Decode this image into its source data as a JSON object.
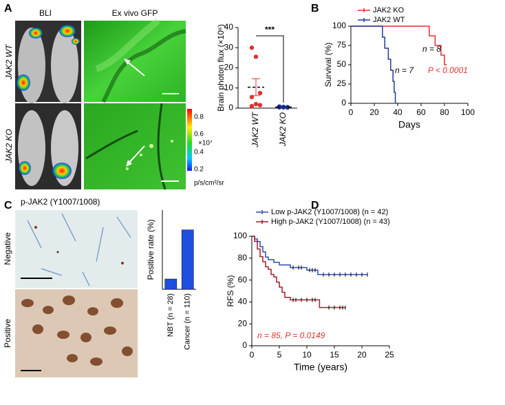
{
  "panel_labels": [
    "A",
    "B",
    "C",
    "D"
  ],
  "panel_a": {
    "columns": [
      "BLI",
      "Ex vivo GFP"
    ],
    "rows": [
      "JAK2 WT",
      "JAK2 KO"
    ],
    "colorbar": {
      "ticks": [
        "0.8",
        "0.6",
        "0.4",
        "0.2"
      ],
      "scale": "×10⁷",
      "unit": "p/s/cm²/sr"
    }
  },
  "panel_c": {
    "title": "p-JAK2 (Y1007/1008)",
    "rows": [
      "Negative",
      "Positive"
    ]
  },
  "chart_data": [
    {
      "type": "dot",
      "ylabel": "Brain photon flux (×10⁶)",
      "categories": [
        "JAK2 WT",
        "JAK2 KO"
      ],
      "values": [
        [
          30,
          25.5,
          7.5,
          5.5,
          2,
          1.5,
          1
        ],
        [
          0.8,
          0.6,
          0.5,
          0.4,
          0.5,
          0.3,
          0.6,
          0.4
        ]
      ],
      "colors": [
        "#e0312f",
        "#1c2f8f"
      ],
      "means": [
        10.4,
        0.5
      ],
      "errors": [
        4.2,
        0.1
      ],
      "annotation": "***",
      "ylim": [
        0,
        40
      ],
      "yticks": [
        0,
        10,
        20,
        30,
        40
      ]
    },
    {
      "type": "step",
      "xlabel": "Days",
      "ylabel": "Survival (%)",
      "xlim": [
        0,
        100
      ],
      "xticks": [
        0,
        20,
        40,
        60,
        80,
        100
      ],
      "ylim": [
        0,
        100
      ],
      "yticks": [
        0,
        25,
        50,
        75,
        100
      ],
      "series": [
        {
          "name": "JAK2 KO",
          "color": "#e0312f",
          "x": [
            0,
            67,
            72,
            77,
            80,
            82
          ],
          "values": [
            100,
            87.5,
            75,
            62.5,
            50,
            50
          ]
        },
        {
          "name": "JAK2 WT",
          "color": "#1f3a9a",
          "x": [
            0,
            27,
            29,
            32,
            34,
            36,
            37,
            38
          ],
          "values": [
            100,
            85.7,
            71.4,
            57.1,
            42.9,
            28.6,
            14.3,
            0
          ]
        }
      ],
      "annotations": [
        {
          "text": "n = 8",
          "color": "#000000"
        },
        {
          "text": "n = 7",
          "color": "#000000"
        },
        {
          "text": "P < 0.0001",
          "color": "#e0312f"
        }
      ]
    },
    {
      "type": "bar",
      "ylabel": "Positive rate (%)",
      "categories": [
        "NBT (n = 28)",
        "Cancer (n = 110)"
      ],
      "values": [
        13,
        75
      ],
      "color": "#1f4fe0",
      "ylim": [
        0,
        100
      ]
    },
    {
      "type": "step",
      "xlabel": "Time (years)",
      "ylabel": "RFS (%)",
      "xlim": [
        0,
        25
      ],
      "xticks": [
        0,
        5,
        10,
        15,
        20,
        25
      ],
      "ylim": [
        0,
        100
      ],
      "yticks": [
        0,
        20,
        40,
        60,
        80,
        100
      ],
      "series": [
        {
          "name": "Low p-JAK2 (Y1007/1008) (n = 42)",
          "color": "#2d4fa8",
          "x": [
            0,
            0.5,
            1,
            1.5,
            2,
            2.5,
            3,
            4,
            5,
            7,
            10,
            12,
            21
          ],
          "values": [
            100,
            97.6,
            95.2,
            90.5,
            85.7,
            81,
            78.6,
            76.2,
            73.8,
            71.4,
            69,
            65,
            65
          ],
          "censors": [
            7.5,
            8.5,
            9,
            10.5,
            11,
            11.5,
            13,
            14,
            15,
            16,
            17,
            18,
            19,
            20,
            21
          ]
        },
        {
          "name": "High p-JAK2 (Y1007/1008) (n = 43)",
          "color": "#a11c2a",
          "x": [
            0,
            0.5,
            1,
            1.5,
            2,
            2.5,
            3,
            3.5,
            4,
            4.5,
            5,
            5.5,
            6,
            7,
            12.3,
            17
          ],
          "values": [
            100,
            95.3,
            88.4,
            81.4,
            76.7,
            72.1,
            69.8,
            65.1,
            62.8,
            58.1,
            53.5,
            48.8,
            44.2,
            41.9,
            34.9,
            34.9
          ],
          "censors": [
            7.5,
            8,
            9,
            10,
            11,
            11.5,
            14,
            15,
            16,
            16.5,
            17
          ]
        }
      ],
      "annotations": [
        {
          "text": "n = 85, P = 0.0149",
          "color": "#e0312f"
        }
      ]
    }
  ]
}
